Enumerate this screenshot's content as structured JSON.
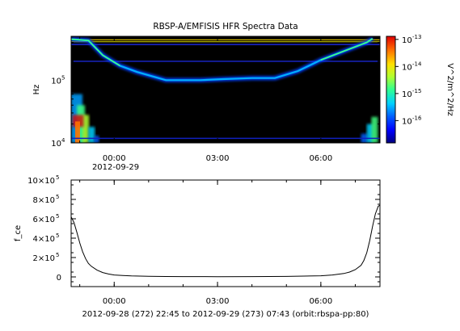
{
  "chart_data": [
    {
      "type": "heatmap",
      "title": "RBSP-A/EMFISIS  HFR Spectra Data",
      "ylabel": "Hz",
      "yscale": "log",
      "ylim": [
        10000,
        500000
      ],
      "y_ticks": [
        {
          "value": 10000,
          "base": "10",
          "exp": "4"
        },
        {
          "value": 100000,
          "base": "10",
          "exp": "5"
        }
      ],
      "xlim": [
        "2012-09-28T22:45",
        "2012-09-29T07:43"
      ],
      "x_ticks": [
        {
          "t": "2012-09-29T00:00",
          "label": "00:00"
        },
        {
          "t": "2012-09-29T03:00",
          "label": "03:00"
        },
        {
          "t": "2012-09-29T06:00",
          "label": "06:00"
        }
      ],
      "x_date_label": "2012-09-29",
      "colorbar": {
        "label": "V^2/m^2/Hz",
        "scale": "log",
        "range": [
          1.5e-17,
          1.3e-13
        ],
        "ticks": [
          {
            "value": 1e-13,
            "base": "10",
            "exp": "-13"
          },
          {
            "value": 1e-14,
            "base": "10",
            "exp": "-14"
          },
          {
            "value": 1e-15,
            "base": "10",
            "exp": "-15"
          },
          {
            "value": 1e-16,
            "base": "10",
            "exp": "-16"
          }
        ]
      },
      "features": {
        "upper_hybrid_line": [
          {
            "t": "2012-09-28T22:45",
            "f": 450000
          },
          {
            "t": "2012-09-28T23:15",
            "f": 430000
          },
          {
            "t": "2012-09-28T23:40",
            "f": 250000
          },
          {
            "t": "2012-09-29T00:10",
            "f": 170000
          },
          {
            "t": "2012-09-29T00:40",
            "f": 135000
          },
          {
            "t": "2012-09-29T01:30",
            "f": 100000
          },
          {
            "t": "2012-09-29T02:30",
            "f": 100000
          },
          {
            "t": "2012-09-29T03:10",
            "f": 104000
          },
          {
            "t": "2012-09-29T04:00",
            "f": 108000
          },
          {
            "t": "2012-09-29T04:40",
            "f": 108000
          },
          {
            "t": "2012-09-29T05:20",
            "f": 140000
          },
          {
            "t": "2012-09-29T06:00",
            "f": 210000
          },
          {
            "t": "2012-09-29T06:40",
            "f": 290000
          },
          {
            "t": "2012-09-29T07:20",
            "f": 400000
          },
          {
            "t": "2012-09-29T07:30",
            "f": 460000
          }
        ],
        "interference_lines_hz": [
          440000,
          410000,
          370000,
          200000
        ]
      }
    },
    {
      "type": "line",
      "ylabel": "f_ce",
      "ylim": [
        -100000,
        1000000
      ],
      "y_ticks": [
        {
          "value": 0,
          "label": "0"
        },
        {
          "value": 200000,
          "mant": "2×10",
          "exp": "5"
        },
        {
          "value": 400000,
          "mant": "4×10",
          "exp": "5"
        },
        {
          "value": 600000,
          "mant": "6×10",
          "exp": "5"
        },
        {
          "value": 800000,
          "mant": "8×10",
          "exp": "5"
        },
        {
          "value": 1000000,
          "mant": "10×10",
          "exp": "5"
        }
      ],
      "xlim": [
        "2012-09-28T22:45",
        "2012-09-29T07:43"
      ],
      "x_ticks": [
        {
          "t": "2012-09-29T00:00",
          "label": "00:00"
        },
        {
          "t": "2012-09-29T03:00",
          "label": "03:00"
        },
        {
          "t": "2012-09-29T06:00",
          "label": "06:00"
        }
      ],
      "series": [
        {
          "color": "#000000",
          "x": [
            "2012-09-28T22:45",
            "2012-09-28T22:50",
            "2012-09-28T22:55",
            "2012-09-28T23:00",
            "2012-09-28T23:05",
            "2012-09-28T23:10",
            "2012-09-28T23:15",
            "2012-09-28T23:20",
            "2012-09-28T23:30",
            "2012-09-28T23:40",
            "2012-09-28T23:50",
            "2012-09-29T00:00",
            "2012-09-29T00:15",
            "2012-09-29T00:30",
            "2012-09-29T01:00",
            "2012-09-29T01:30",
            "2012-09-29T02:00",
            "2012-09-29T03:00",
            "2012-09-29T04:00",
            "2012-09-29T05:00",
            "2012-09-29T05:30",
            "2012-09-29T06:00",
            "2012-09-29T06:20",
            "2012-09-29T06:40",
            "2012-09-29T06:50",
            "2012-09-29T07:00",
            "2012-09-29T07:10",
            "2012-09-29T07:15",
            "2012-09-29T07:20",
            "2012-09-29T07:25",
            "2012-09-29T07:30",
            "2012-09-29T07:35",
            "2012-09-29T07:40",
            "2012-09-29T07:43"
          ],
          "y": [
            620000,
            560000,
            460000,
            350000,
            260000,
            190000,
            140000,
            110000,
            70000,
            45000,
            30000,
            20000,
            14000,
            10000,
            6000,
            4000,
            3000,
            2500,
            3000,
            5000,
            8000,
            12000,
            20000,
            35000,
            50000,
            75000,
            120000,
            170000,
            250000,
            370000,
            520000,
            650000,
            730000,
            740000
          ]
        }
      ]
    }
  ],
  "footer": "2012-09-28 (272) 22:45 to 2012-09-29 (273) 07:43 (orbit:rbspa-pp:80)",
  "colors": {
    "background": "#000000",
    "colormap": [
      "#00007f",
      "#0000ff",
      "#0060ff",
      "#00d0ff",
      "#30ff90",
      "#b0ff30",
      "#ffe000",
      "#ff7000",
      "#e00000"
    ]
  }
}
